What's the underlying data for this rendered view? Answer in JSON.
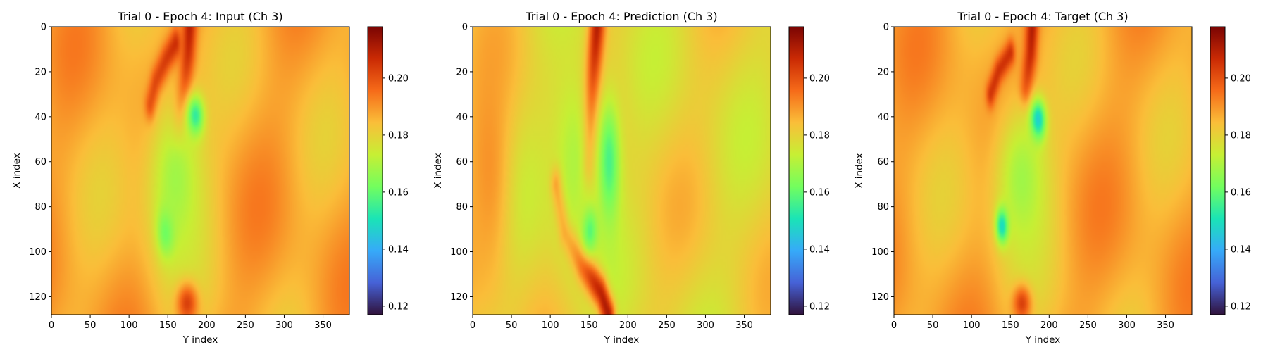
{
  "colormap": {
    "name": "turbo",
    "stops": [
      "#30123b",
      "#4662d7",
      "#36aaf9",
      "#1ae4b6",
      "#72fe5e",
      "#c7ef34",
      "#fabe39",
      "#f66b19",
      "#ca2a04",
      "#7a0403"
    ]
  },
  "chart_data": [
    {
      "type": "heatmap",
      "title": "Trial 0 - Epoch 4: Input (Ch 3)",
      "xlabel": "Y index",
      "ylabel": "X index",
      "x_range": [
        0,
        384
      ],
      "y_range": [
        0,
        128
      ],
      "y_inverted": true,
      "xticks": [
        0,
        50,
        100,
        150,
        200,
        250,
        300,
        350
      ],
      "yticks": [
        0,
        20,
        40,
        60,
        80,
        100,
        120
      ],
      "colorbar": {
        "min": 0.117,
        "max": 0.218,
        "ticks": [
          0.12,
          0.14,
          0.16,
          0.18,
          0.2
        ],
        "ticklabels": [
          "0.12",
          "0.14",
          "0.16",
          "0.18",
          "0.20"
        ]
      },
      "background": 0.187,
      "features": [
        {
          "kind": "ridge",
          "points": [
            [
              178,
              0
            ],
            [
              176,
              12
            ],
            [
              172,
              25
            ],
            [
              166,
              38
            ],
            [
              162,
              50
            ]
          ],
          "value": 0.212,
          "width": 9
        },
        {
          "kind": "ridge",
          "points": [
            [
              128,
              35
            ],
            [
              135,
              25
            ],
            [
              148,
              15
            ],
            [
              160,
              8
            ]
          ],
          "value": 0.212,
          "width": 7
        },
        {
          "kind": "blob",
          "x": 185,
          "y": 40,
          "rx": 11,
          "ry": 9,
          "value": 0.143
        },
        {
          "kind": "blob",
          "x": 148,
          "y": 90,
          "rx": 11,
          "ry": 11,
          "value": 0.148
        },
        {
          "kind": "blob",
          "x": 160,
          "y": 68,
          "rx": 40,
          "ry": 42,
          "value": 0.168
        },
        {
          "kind": "blob",
          "x": 175,
          "y": 123,
          "rx": 14,
          "ry": 9,
          "value": 0.203
        }
      ]
    },
    {
      "type": "heatmap",
      "title": "Trial 0 - Epoch 4: Prediction (Ch 3)",
      "xlabel": "Y index",
      "ylabel": "X index",
      "x_range": [
        0,
        384
      ],
      "y_range": [
        0,
        128
      ],
      "y_inverted": true,
      "xticks": [
        0,
        50,
        100,
        150,
        200,
        250,
        300,
        350
      ],
      "yticks": [
        0,
        20,
        40,
        60,
        80,
        100,
        120
      ],
      "colorbar": {
        "min": 0.117,
        "max": 0.218,
        "ticks": [
          0.12,
          0.14,
          0.16,
          0.18,
          0.2
        ],
        "ticklabels": [
          "0.12",
          "0.14",
          "0.16",
          "0.18",
          "0.20"
        ]
      },
      "background": 0.18,
      "features": [
        {
          "kind": "ridge",
          "points": [
            [
              160,
              0
            ],
            [
              155,
              20
            ],
            [
              150,
              40
            ],
            [
              145,
              60
            ]
          ],
          "value": 0.214,
          "width": 10
        },
        {
          "kind": "ridge",
          "points": [
            [
              110,
              70
            ],
            [
              120,
              90
            ],
            [
              140,
              105
            ],
            [
              165,
              118
            ],
            [
              175,
              128
            ]
          ],
          "value": 0.212,
          "width": 8
        },
        {
          "kind": "blob",
          "x": 175,
          "y": 60,
          "rx": 15,
          "ry": 28,
          "value": 0.155
        },
        {
          "kind": "blob",
          "x": 150,
          "y": 90,
          "rx": 10,
          "ry": 10,
          "value": 0.15
        },
        {
          "kind": "blob",
          "x": 130,
          "y": 60,
          "rx": 30,
          "ry": 50,
          "value": 0.17
        },
        {
          "kind": "blob",
          "x": 20,
          "y": 60,
          "rx": 30,
          "ry": 60,
          "value": 0.19
        }
      ]
    },
    {
      "type": "heatmap",
      "title": "Trial 0 - Epoch 4: Target (Ch 3)",
      "xlabel": "Y index",
      "ylabel": "X index",
      "x_range": [
        0,
        384
      ],
      "y_range": [
        0,
        128
      ],
      "y_inverted": true,
      "xticks": [
        0,
        50,
        100,
        150,
        200,
        250,
        300,
        350
      ],
      "yticks": [
        0,
        20,
        40,
        60,
        80,
        100,
        120
      ],
      "colorbar": {
        "min": 0.117,
        "max": 0.218,
        "ticks": [
          0.12,
          0.14,
          0.16,
          0.18,
          0.2
        ],
        "ticklabels": [
          "0.12",
          "0.14",
          "0.16",
          "0.18",
          "0.20"
        ]
      },
      "background": 0.187,
      "features": [
        {
          "kind": "ridge",
          "points": [
            [
              178,
              0
            ],
            [
              176,
              12
            ],
            [
              170,
              28
            ]
          ],
          "value": 0.212,
          "width": 8
        },
        {
          "kind": "ridge",
          "points": [
            [
              125,
              30
            ],
            [
              135,
              20
            ],
            [
              150,
              12
            ]
          ],
          "value": 0.21,
          "width": 6
        },
        {
          "kind": "blob",
          "x": 185,
          "y": 42,
          "rx": 10,
          "ry": 9,
          "value": 0.128
        },
        {
          "kind": "blob",
          "x": 140,
          "y": 88,
          "rx": 8,
          "ry": 8,
          "value": 0.13
        },
        {
          "kind": "blob",
          "x": 165,
          "y": 68,
          "rx": 38,
          "ry": 38,
          "value": 0.168
        },
        {
          "kind": "blob",
          "x": 165,
          "y": 123,
          "rx": 12,
          "ry": 8,
          "value": 0.203
        }
      ]
    }
  ]
}
